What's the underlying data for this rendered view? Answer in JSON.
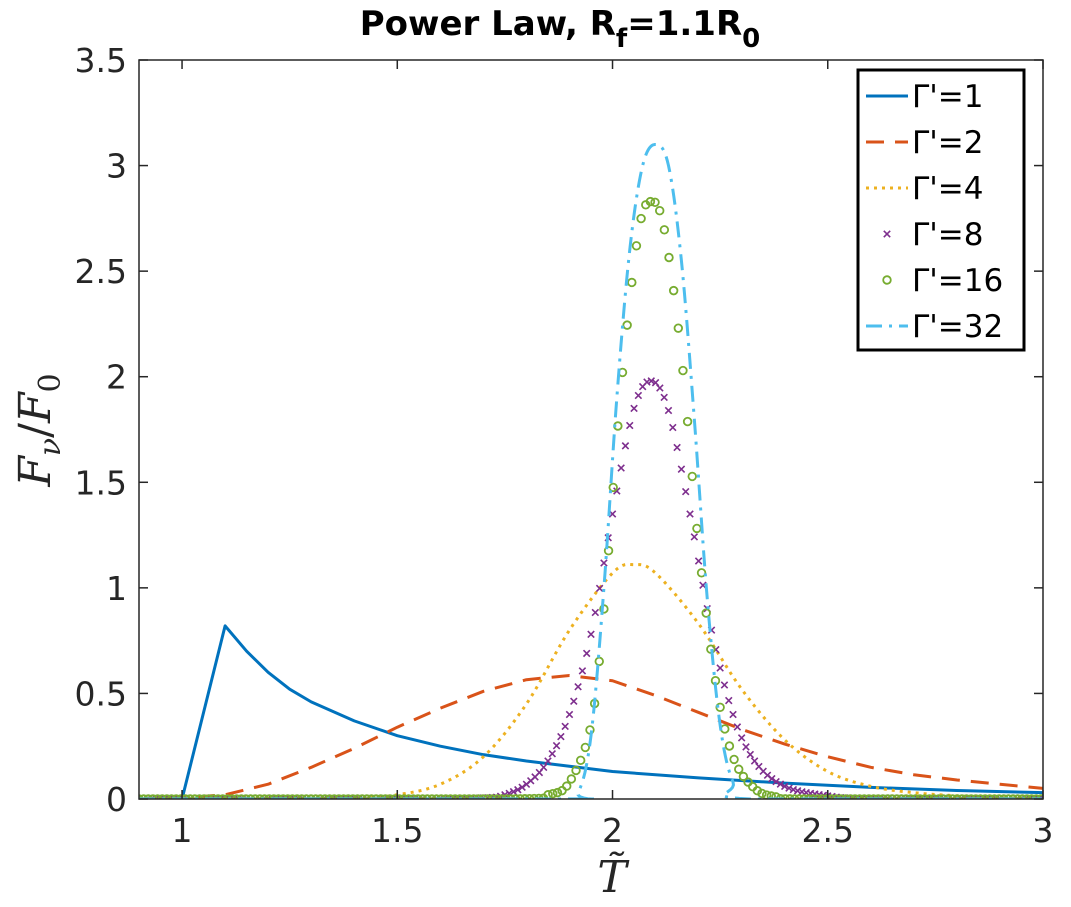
{
  "chart_data": {
    "type": "line",
    "title": {
      "prefix": "Power Law, R",
      "sub1": "f",
      "mid": "=1.1R",
      "sub2": "0"
    },
    "xlabel": "T̃",
    "ylabel": "F_ν/F_0",
    "ylabel_parts": {
      "num": "F",
      "num_sub": "ν",
      "slash": "/",
      "den": "F",
      "den_sub": "0"
    },
    "xlim": [
      0.9,
      3.0
    ],
    "ylim": [
      0,
      3.5
    ],
    "xticks": [
      1,
      1.5,
      2,
      2.5,
      3
    ],
    "xtick_labels": [
      "1",
      "1.5",
      "2",
      "2.5",
      "3"
    ],
    "yticks": [
      0,
      0.5,
      1,
      1.5,
      2,
      2.5,
      3,
      3.5
    ],
    "ytick_labels": [
      "0",
      "0.5",
      "1",
      "1.5",
      "2",
      "2.5",
      "3",
      "3.5"
    ],
    "grid": false,
    "legend_position": "top-right",
    "series": [
      {
        "name": "Γ'=1",
        "color": "#0072BD",
        "style": "solid",
        "x": [
          0.9,
          1.0,
          1.1,
          1.15,
          1.2,
          1.25,
          1.3,
          1.4,
          1.5,
          1.6,
          1.7,
          1.8,
          1.9,
          2.0,
          2.2,
          2.4,
          2.6,
          2.8,
          3.0
        ],
        "y": [
          0,
          0,
          0.82,
          0.7,
          0.6,
          0.52,
          0.46,
          0.37,
          0.3,
          0.25,
          0.21,
          0.18,
          0.155,
          0.13,
          0.1,
          0.075,
          0.055,
          0.04,
          0.03
        ]
      },
      {
        "name": "Γ'=2",
        "color": "#D95319",
        "style": "dashed",
        "x": [
          0.9,
          1.0,
          1.1,
          1.2,
          1.3,
          1.4,
          1.5,
          1.6,
          1.7,
          1.8,
          1.9,
          2.0,
          2.1,
          2.2,
          2.3,
          2.4,
          2.5,
          2.6,
          2.7,
          2.8,
          2.9,
          3.0
        ],
        "y": [
          0,
          0.005,
          0.02,
          0.07,
          0.15,
          0.24,
          0.34,
          0.43,
          0.51,
          0.565,
          0.585,
          0.56,
          0.49,
          0.41,
          0.33,
          0.26,
          0.2,
          0.15,
          0.115,
          0.09,
          0.07,
          0.05
        ]
      },
      {
        "name": "Γ'=4",
        "color": "#EDB120",
        "style": "dotted",
        "x": [
          0.9,
          1.2,
          1.4,
          1.5,
          1.6,
          1.7,
          1.8,
          1.9,
          2.0,
          2.05,
          2.1,
          2.2,
          2.3,
          2.4,
          2.5,
          2.6,
          2.7,
          2.8,
          2.9,
          3.0
        ],
        "y": [
          0,
          0,
          0.005,
          0.02,
          0.07,
          0.2,
          0.45,
          0.8,
          1.07,
          1.11,
          1.07,
          0.83,
          0.52,
          0.28,
          0.13,
          0.06,
          0.03,
          0.015,
          0.005,
          0
        ],
        "smooth": true
      },
      {
        "name": "Γ'=8",
        "color": "#7E2F8E",
        "style": "cross",
        "x": [
          0.9,
          1.5,
          1.7,
          1.75,
          1.8,
          1.85,
          1.9,
          1.95,
          2.0,
          2.05,
          2.09,
          2.13,
          2.18,
          2.23,
          2.28,
          2.33,
          2.4,
          2.5,
          2.6,
          3.0
        ],
        "y": [
          0,
          0,
          0.005,
          0.02,
          0.07,
          0.18,
          0.4,
          0.78,
          1.35,
          1.85,
          1.98,
          1.84,
          1.35,
          0.8,
          0.4,
          0.18,
          0.06,
          0.015,
          0.003,
          0
        ],
        "smooth": true
      },
      {
        "name": "Γ'=16",
        "color": "#77AC30",
        "style": "circle",
        "x": [
          0.9,
          1.75,
          1.85,
          1.9,
          1.95,
          1.98,
          2.02,
          2.06,
          2.09,
          2.12,
          2.16,
          2.2,
          2.24,
          2.28,
          2.33,
          2.38,
          2.45,
          3.0
        ],
        "y": [
          0,
          0,
          0.02,
          0.08,
          0.35,
          0.9,
          1.95,
          2.68,
          2.83,
          2.7,
          2.1,
          1.2,
          0.55,
          0.2,
          0.05,
          0.01,
          0,
          0
        ],
        "smooth": true
      },
      {
        "name": "Γ'=32",
        "color": "#4DBEEE",
        "style": "dashdot",
        "x": [
          0.9,
          1.88,
          1.92,
          1.95,
          1.98,
          2.01,
          2.04,
          2.07,
          2.1,
          2.13,
          2.16,
          2.19,
          2.22,
          2.25,
          2.28,
          2.32,
          3.0
        ],
        "y": [
          0,
          0,
          0.03,
          0.3,
          1.0,
          1.9,
          2.6,
          3.0,
          3.1,
          3.0,
          2.55,
          1.8,
          0.95,
          0.35,
          0.08,
          0,
          0
        ],
        "smooth": true
      }
    ]
  }
}
